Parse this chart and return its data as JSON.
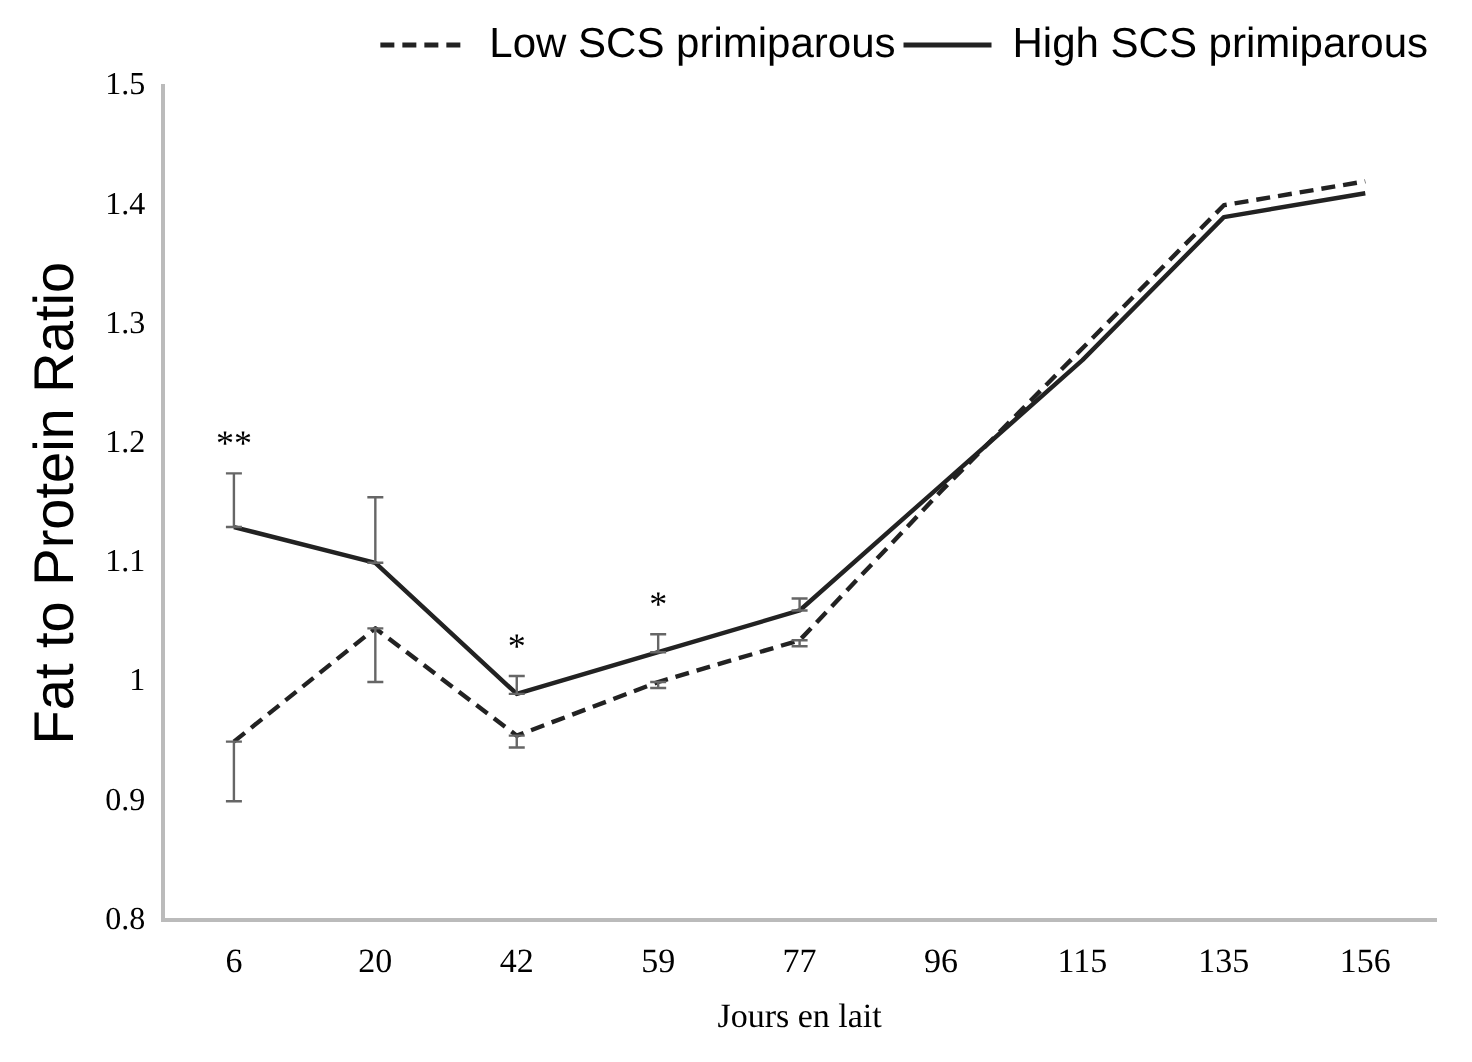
{
  "chart_data": {
    "type": "line",
    "xlabel": "Jours en lait",
    "ylabel": "Fat to Protein Ratio",
    "categories": [
      "6",
      "20",
      "42",
      "59",
      "77",
      "96",
      "115",
      "135",
      "156"
    ],
    "series": [
      {
        "name": "Low SCS primiparous",
        "color": "#222222",
        "line_style": "dashed",
        "values": [
          0.95,
          1.045,
          0.955,
          1.0,
          1.035,
          1.16,
          1.28,
          1.4,
          1.42
        ],
        "errors": [
          [
            0.9,
            0.95
          ],
          [
            1.0,
            1.045
          ],
          [
            0.945,
            0.955
          ],
          [
            0.995,
            1.0
          ],
          [
            1.03,
            1.035
          ],
          null,
          null,
          null,
          null
        ]
      },
      {
        "name": "High SCS primiparous",
        "color": "#222222",
        "line_style": "solid",
        "values": [
          1.13,
          1.1,
          0.99,
          1.025,
          1.06,
          1.165,
          1.27,
          1.39,
          1.41
        ],
        "errors": [
          [
            1.13,
            1.175
          ],
          [
            1.1,
            1.155
          ],
          [
            0.99,
            1.005
          ],
          [
            1.025,
            1.04
          ],
          [
            1.06,
            1.07
          ],
          null,
          null,
          null,
          null
        ]
      }
    ],
    "ylim": [
      0.8,
      1.5
    ],
    "yticks": [
      0.8,
      0.9,
      1,
      1.1,
      1.2,
      1.3,
      1.4,
      1.5
    ],
    "grid": false,
    "legend": "top right",
    "marker": "none",
    "annotations": [
      "**",
      "*",
      "*"
    ]
  }
}
